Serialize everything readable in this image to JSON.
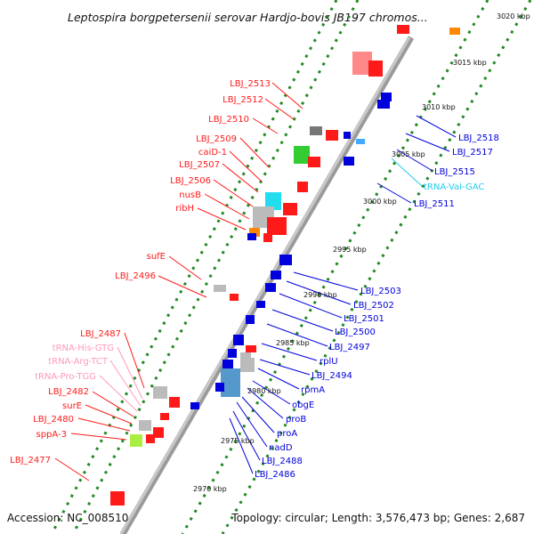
{
  "header": {
    "title": "Leptospira borgpetersenii serovar Hardjo-bovis JB197 chromos..."
  },
  "footer": {
    "accession": "Accession: NC_008510",
    "topology": "Topology: circular; Length: 3,576,473 bp; Genes: 2,687"
  },
  "colors": {
    "red": "#ff1a1a",
    "blue": "#0000dd",
    "trna_pink": "#ff99bb",
    "trna_cyan": "#22ccee",
    "gray": "#bbbbbb",
    "green": "#33cc33",
    "tick_green": "#228822"
  },
  "ticks": [
    "3020 kbp",
    "3015 kbp",
    "3010 kbp",
    "3005 kbp",
    "3000 kbp",
    "2995 kbp",
    "2990 kbp",
    "2985 kbp",
    "2980 kbp",
    "2975 kbp",
    "2970 kbp"
  ],
  "left_labels": [
    {
      "text": "LBJ_2513",
      "type": "red"
    },
    {
      "text": "LBJ_2512",
      "type": "red"
    },
    {
      "text": "LBJ_2510",
      "type": "red"
    },
    {
      "text": "LBJ_2509",
      "type": "red"
    },
    {
      "text": "caiD-1",
      "type": "red"
    },
    {
      "text": "LBJ_2507",
      "type": "red"
    },
    {
      "text": "LBJ_2506",
      "type": "red"
    },
    {
      "text": "nusB",
      "type": "red"
    },
    {
      "text": "ribH",
      "type": "red"
    },
    {
      "text": "sufE",
      "type": "red"
    },
    {
      "text": "LBJ_2496",
      "type": "red"
    },
    {
      "text": "LBJ_2487",
      "type": "red"
    },
    {
      "text": "tRNA-His-GTG",
      "type": "pink"
    },
    {
      "text": "tRNA-Arg-TCT",
      "type": "pink"
    },
    {
      "text": "tRNA-Pro-TGG",
      "type": "pink"
    },
    {
      "text": "LBJ_2482",
      "type": "red"
    },
    {
      "text": "surE",
      "type": "red"
    },
    {
      "text": "LBJ_2480",
      "type": "red"
    },
    {
      "text": "sppA-3",
      "type": "red"
    },
    {
      "text": "LBJ_2477",
      "type": "red"
    }
  ],
  "right_labels": [
    {
      "text": "LBJ_2518",
      "type": "blue"
    },
    {
      "text": "LBJ_2517",
      "type": "blue"
    },
    {
      "text": "LBJ_2515",
      "type": "blue"
    },
    {
      "text": "tRNA-Val-GAC",
      "type": "cyan"
    },
    {
      "text": "LBJ_2511",
      "type": "blue"
    },
    {
      "text": "LBJ_2503",
      "type": "blue"
    },
    {
      "text": "LBJ_2502",
      "type": "blue"
    },
    {
      "text": "LBJ_2501",
      "type": "blue"
    },
    {
      "text": "LBJ_2500",
      "type": "blue"
    },
    {
      "text": "LBJ_2497",
      "type": "blue"
    },
    {
      "text": "rplU",
      "type": "blue"
    },
    {
      "text": "LBJ_2494",
      "type": "blue"
    },
    {
      "text": "rpmA",
      "type": "blue"
    },
    {
      "text": "obgE",
      "type": "blue"
    },
    {
      "text": "proB",
      "type": "blue"
    },
    {
      "text": "proA",
      "type": "blue"
    },
    {
      "text": "nadD",
      "type": "blue"
    },
    {
      "text": "LBJ_2488",
      "type": "blue"
    },
    {
      "text": "LBJ_2486",
      "type": "blue"
    }
  ]
}
